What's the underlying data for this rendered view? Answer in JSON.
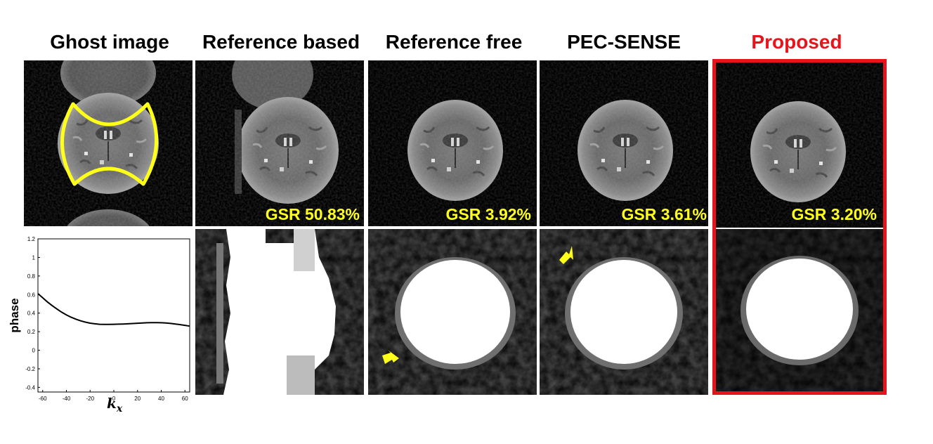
{
  "columns": [
    {
      "title": "Ghost image"
    },
    {
      "title": "Reference based",
      "gsr": "GSR 50.83%"
    },
    {
      "title": "Reference free",
      "gsr": "GSR 3.92%"
    },
    {
      "title": "PEC-SENSE",
      "gsr": "GSR 3.61%"
    },
    {
      "title": "Proposed",
      "gsr": "GSR 3.20%"
    }
  ],
  "colors": {
    "title": "#000000",
    "proposed_title": "#e8141b",
    "highlight_box": "#e8141b",
    "gsr_text": "#ffff1a",
    "roi_outline": "#ffff1a",
    "arrow": "#ffff1a"
  },
  "chart_data": {
    "type": "line",
    "xlabel": "k_x",
    "ylabel": "phase",
    "xlim": [
      -64,
      64
    ],
    "ylim": [
      -0.45,
      1.2
    ],
    "xticks": [
      "-60",
      "-40",
      "-20",
      "0",
      "20",
      "40",
      "60"
    ],
    "yticks": [
      "-0.4",
      "-0.2",
      "0",
      "0.2",
      "0.4",
      "0.6",
      "0.8",
      "1",
      "1.2"
    ],
    "x": [
      -64,
      -60,
      -56,
      -52,
      -48,
      -44,
      -40,
      -36,
      -32,
      -28,
      -24,
      -20,
      -16,
      -12,
      -8,
      -4,
      0,
      4,
      8,
      12,
      16,
      20,
      24,
      28,
      32,
      36,
      40,
      44,
      48,
      52,
      56,
      60,
      64
    ],
    "y": [
      0.61,
      0.565,
      0.52,
      0.48,
      0.445,
      0.41,
      0.38,
      0.355,
      0.335,
      0.317,
      0.303,
      0.292,
      0.285,
      0.28,
      0.278,
      0.278,
      0.28,
      0.281,
      0.283,
      0.285,
      0.288,
      0.291,
      0.294,
      0.296,
      0.297,
      0.297,
      0.296,
      0.293,
      0.289,
      0.283,
      0.276,
      0.268,
      0.26
    ],
    "grid": false
  }
}
